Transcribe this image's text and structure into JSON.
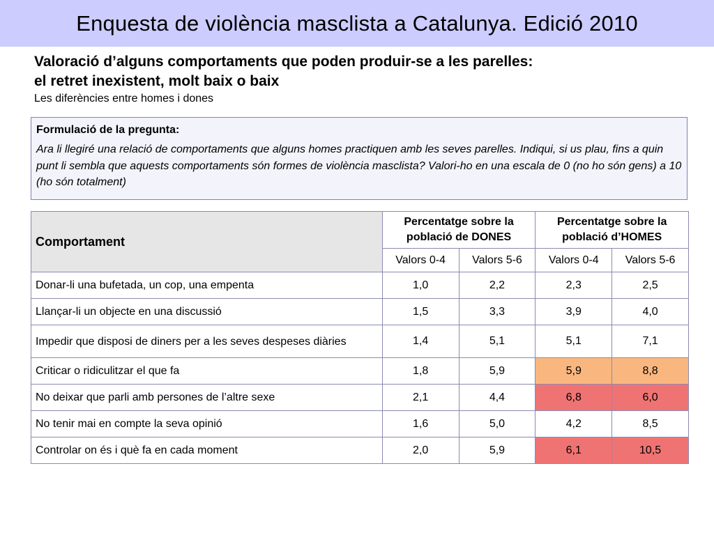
{
  "title": "Enquesta de violència masclista a Catalunya. Edició 2010",
  "heading": {
    "line1": "Valoració d’alguns comportaments que poden produir-se a les parelles:",
    "line2": "el retret inexistent, molt baix o baix",
    "subtitle": "Les diferències entre homes i dones"
  },
  "question": {
    "label": "Formulació de la pregunta:",
    "text": "Ara li llegiré una relació de comportaments que alguns homes practiquen amb les seves parelles. Indiqui, si us plau, fins a quin punt li sembla que aquests comportaments són formes de violència masclista? Valori-ho en una escala de 0 (no ho són gens) a 10 (ho són totalment)"
  },
  "table": {
    "header_behaviour": "Comportament",
    "header_women": "Percentatge sobre la població de DONES",
    "header_men": "Percentatge sobre la població d’HOMES",
    "subheaders": [
      "Valors 0-4",
      "Valors 5-6",
      "Valors 0-4",
      "Valors 5-6"
    ],
    "highlight_colors": {
      "orange": "#f9b77f",
      "red": "#f07373"
    },
    "rows": [
      {
        "label": "Donar-li una bufetada, un cop, una empenta",
        "values": [
          "1,0",
          "2,2",
          "2,3",
          "2,5"
        ],
        "highlight": [
          "",
          "",
          "",
          ""
        ]
      },
      {
        "label": "Llançar-li un objecte en una discussió",
        "values": [
          "1,5",
          "3,3",
          "3,9",
          "4,0"
        ],
        "highlight": [
          "",
          "",
          "",
          ""
        ]
      },
      {
        "label": "Impedir que disposi de diners per a les seves despeses diàries",
        "values": [
          "1,4",
          "5,1",
          "5,1",
          "7,1"
        ],
        "highlight": [
          "",
          "",
          "",
          ""
        ]
      },
      {
        "label": "Criticar o ridiculitzar el que fa",
        "values": [
          "1,8",
          "5,9",
          "5,9",
          "8,8"
        ],
        "highlight": [
          "",
          "",
          "orange",
          "orange"
        ]
      },
      {
        "label": "No deixar que parli amb persones de l’altre sexe",
        "values": [
          "2,1",
          "4,4",
          "6,8",
          "6,0"
        ],
        "highlight": [
          "",
          "",
          "red",
          "red"
        ]
      },
      {
        "label": "No tenir mai en compte la seva opinió",
        "values": [
          "1,6",
          "5,0",
          "4,2",
          "8,5"
        ],
        "highlight": [
          "",
          "",
          "",
          ""
        ]
      },
      {
        "label": "Controlar on és i què fa en cada moment",
        "values": [
          "2,0",
          "5,9",
          "6,1",
          "10,5"
        ],
        "highlight": [
          "",
          "",
          "red",
          "red"
        ]
      }
    ]
  }
}
